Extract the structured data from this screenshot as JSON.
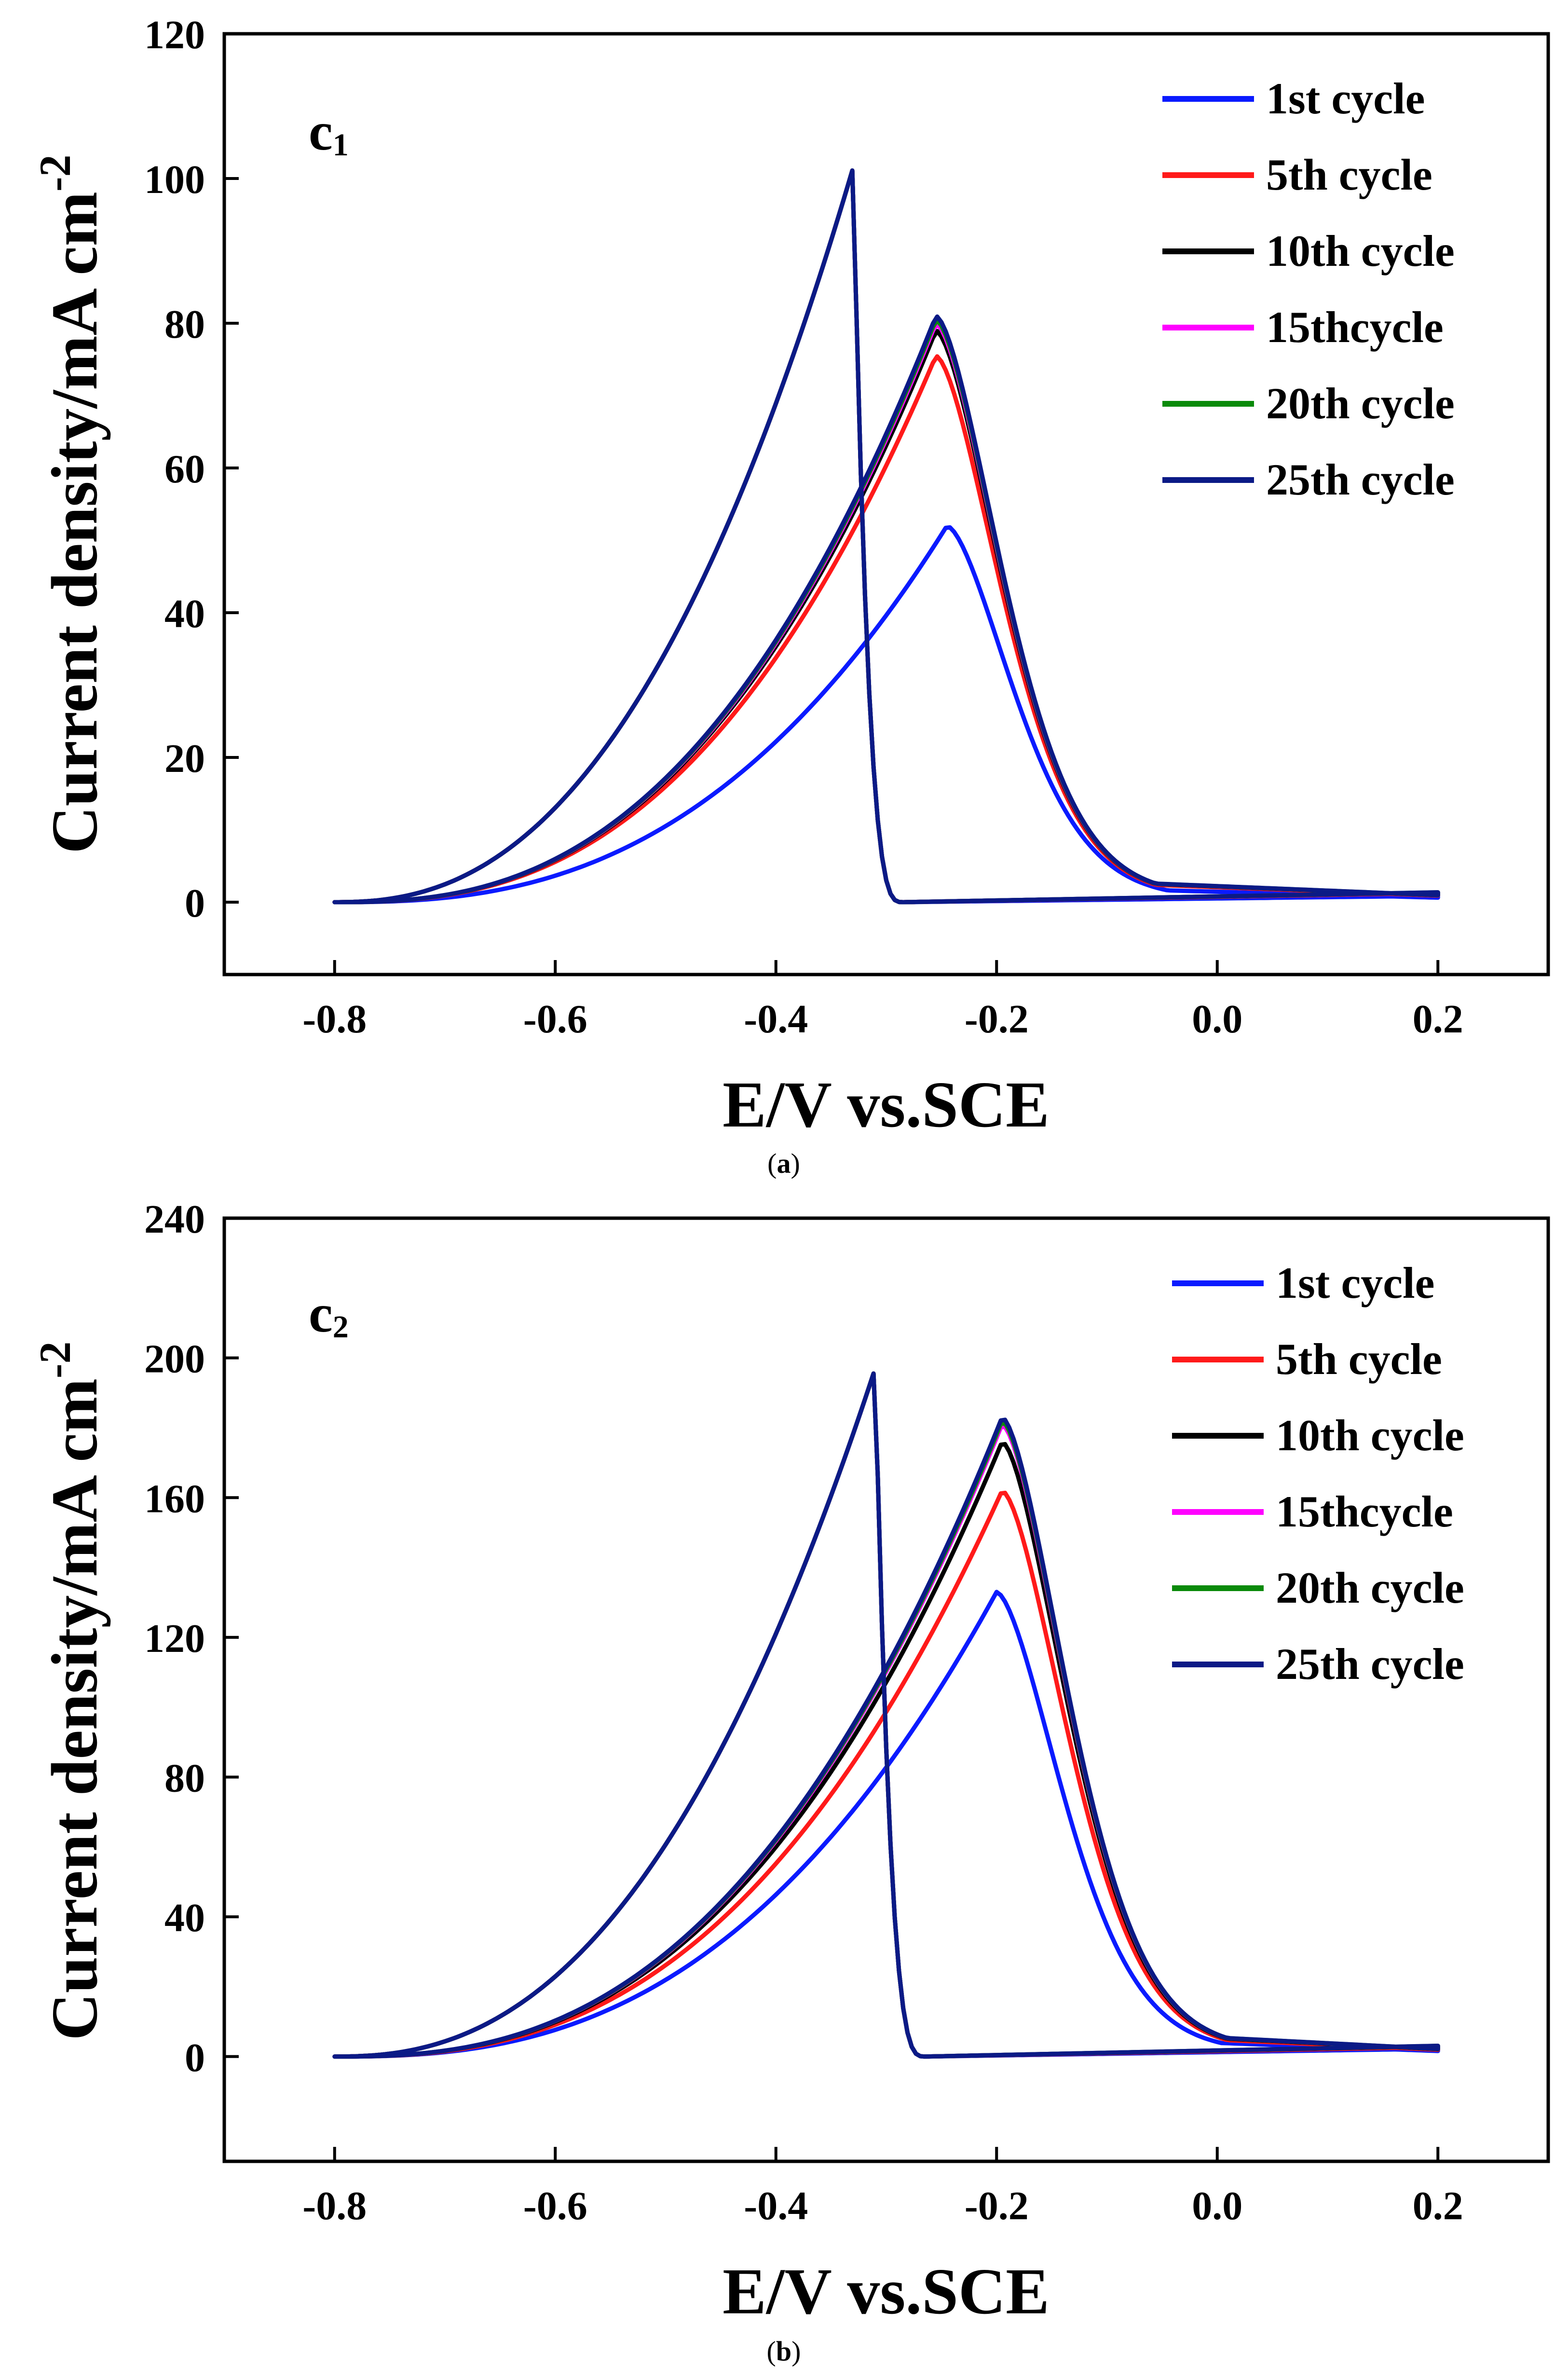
{
  "chart_data": [
    {
      "type": "line",
      "panel_label": "c",
      "panel_label_sub": "1",
      "caption_open": "(",
      "caption_letter": "a",
      "caption_close": ")",
      "xlabel": "E/V vs.SCE",
      "ylabel": "Current density/mA cm",
      "ylabel_sup": "-2",
      "xlim": [
        -0.9,
        0.3
      ],
      "ylim": [
        -10,
        120
      ],
      "x_ticks": [
        -0.8,
        -0.6,
        -0.4,
        -0.2,
        0.0,
        0.2
      ],
      "x_tick_labels": [
        "-0.8",
        "-0.6",
        "-0.4",
        "-0.2",
        "0.0",
        "0.2"
      ],
      "y_ticks": [
        0,
        20,
        40,
        60,
        80,
        100,
        120
      ],
      "y_tick_labels": [
        "0",
        "20",
        "40",
        "60",
        "80",
        "100",
        "120"
      ],
      "legend_position": "top-right",
      "series": [
        {
          "name": "1st cycle",
          "color": "#0a1aff",
          "forward_peak": {
            "x": -0.245,
            "y": 52
          },
          "reverse_peak": {
            "x": -0.33,
            "y": 101.5
          }
        },
        {
          "name": "5th cycle",
          "color": "#ff1a1a",
          "forward_peak": {
            "x": -0.255,
            "y": 75.5
          },
          "reverse_peak": {
            "x": -0.33,
            "y": 101.5
          }
        },
        {
          "name": "10th cycle",
          "color": "#000000",
          "forward_peak": {
            "x": -0.255,
            "y": 79
          },
          "reverse_peak": {
            "x": -0.33,
            "y": 101.5
          }
        },
        {
          "name": "15thcycle",
          "color": "#ff00ff",
          "forward_peak": {
            "x": -0.255,
            "y": 80
          },
          "reverse_peak": {
            "x": -0.33,
            "y": 101.5
          }
        },
        {
          "name": "20th cycle",
          "color": "#0a8a0a",
          "forward_peak": {
            "x": -0.255,
            "y": 80.5
          },
          "reverse_peak": {
            "x": -0.33,
            "y": 101.5
          }
        },
        {
          "name": "25th cycle",
          "color": "#0b1a86",
          "forward_peak": {
            "x": -0.255,
            "y": 81
          },
          "reverse_peak": {
            "x": -0.33,
            "y": 101.5
          }
        }
      ]
    },
    {
      "type": "line",
      "panel_label": "c",
      "panel_label_sub": "2",
      "caption_open": "(",
      "caption_letter": "b",
      "caption_close": ")",
      "xlabel": "E/V vs.SCE",
      "ylabel": "Current density/mA cm",
      "ylabel_sup": "-2",
      "xlim": [
        -0.9,
        0.3
      ],
      "ylim": [
        -30,
        240
      ],
      "x_ticks": [
        -0.8,
        -0.6,
        -0.4,
        -0.2,
        0.0,
        0.2
      ],
      "x_tick_labels": [
        "-0.8",
        "-0.6",
        "-0.4",
        "-0.2",
        "0.0",
        "0.2"
      ],
      "y_ticks": [
        0,
        40,
        80,
        120,
        160,
        200,
        240
      ],
      "y_tick_labels": [
        "0",
        "40",
        "80",
        "120",
        "160",
        "200",
        "240"
      ],
      "legend_position": "top-right",
      "series": [
        {
          "name": "1st cycle",
          "color": "#0a1aff",
          "forward_peak": {
            "x": -0.2,
            "y": 133
          },
          "reverse_peak": {
            "x": -0.31,
            "y": 197
          }
        },
        {
          "name": "5th cycle",
          "color": "#ff1a1a",
          "forward_peak": {
            "x": -0.195,
            "y": 162
          },
          "reverse_peak": {
            "x": -0.31,
            "y": 197
          }
        },
        {
          "name": "10th cycle",
          "color": "#000000",
          "forward_peak": {
            "x": -0.195,
            "y": 176
          },
          "reverse_peak": {
            "x": -0.31,
            "y": 197
          }
        },
        {
          "name": "15thcycle",
          "color": "#ff00ff",
          "forward_peak": {
            "x": -0.195,
            "y": 181
          },
          "reverse_peak": {
            "x": -0.31,
            "y": 197
          }
        },
        {
          "name": "20th cycle",
          "color": "#0a8a0a",
          "forward_peak": {
            "x": -0.195,
            "y": 182
          },
          "reverse_peak": {
            "x": -0.31,
            "y": 197
          }
        },
        {
          "name": "25th cycle",
          "color": "#0b1a86",
          "forward_peak": {
            "x": -0.195,
            "y": 183
          },
          "reverse_peak": {
            "x": -0.31,
            "y": 197
          }
        }
      ]
    }
  ]
}
